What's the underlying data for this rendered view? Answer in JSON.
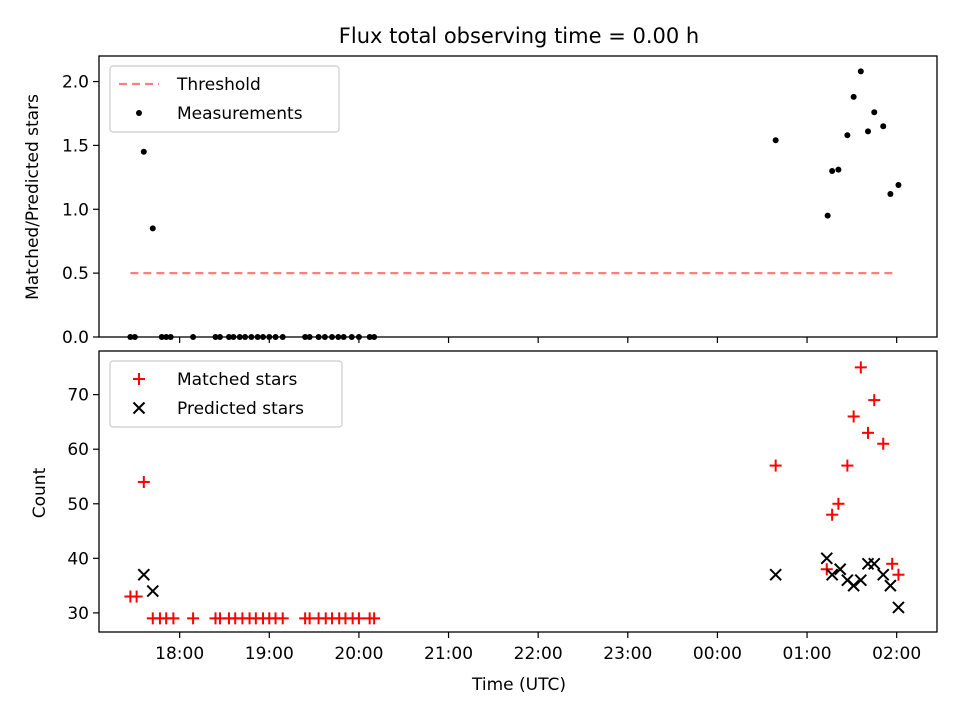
{
  "chart_data": [
    {
      "type": "scatter",
      "title": "Flux total observing time = 0.00 h",
      "xlabel": "",
      "ylabel": "Matched/Predicted stars",
      "xlim": [
        17.1,
        26.45
      ],
      "ylim": [
        0,
        2.2
      ],
      "yticks": [
        0.0,
        0.5,
        1.0,
        1.5,
        2.0
      ],
      "ytick_labels": [
        "0.0",
        "0.5",
        "1.0",
        "1.5",
        "2.0"
      ],
      "legend_position": "top-left",
      "legend": [
        "Threshold",
        "Measurements"
      ],
      "threshold": {
        "name": "Threshold",
        "x_start": 17.45,
        "x_end": 25.98,
        "y": 0.5,
        "color": "#ff7f7f"
      },
      "series": [
        {
          "name": "Measurements",
          "color": "#000000",
          "points": [
            [
              17.45,
              0
            ],
            [
              17.5,
              0
            ],
            [
              17.6,
              1.45
            ],
            [
              17.7,
              0.85
            ],
            [
              17.8,
              0
            ],
            [
              17.85,
              0
            ],
            [
              17.9,
              0
            ],
            [
              18.15,
              0
            ],
            [
              18.4,
              0
            ],
            [
              18.45,
              0
            ],
            [
              18.55,
              0
            ],
            [
              18.6,
              0
            ],
            [
              18.67,
              0
            ],
            [
              18.73,
              0
            ],
            [
              18.8,
              0
            ],
            [
              18.87,
              0
            ],
            [
              18.93,
              0
            ],
            [
              19.0,
              0
            ],
            [
              19.07,
              0
            ],
            [
              19.15,
              0
            ],
            [
              19.4,
              0
            ],
            [
              19.45,
              0
            ],
            [
              19.55,
              0
            ],
            [
              19.62,
              0
            ],
            [
              19.7,
              0
            ],
            [
              19.77,
              0
            ],
            [
              19.83,
              0
            ],
            [
              19.92,
              0
            ],
            [
              20.0,
              0
            ],
            [
              20.12,
              0
            ],
            [
              20.17,
              0
            ],
            [
              24.65,
              1.54
            ],
            [
              25.23,
              0.95
            ],
            [
              25.28,
              1.3
            ],
            [
              25.35,
              1.31
            ],
            [
              25.45,
              1.58
            ],
            [
              25.52,
              1.88
            ],
            [
              25.6,
              2.08
            ],
            [
              25.68,
              1.61
            ],
            [
              25.75,
              1.76
            ],
            [
              25.85,
              1.65
            ],
            [
              25.93,
              1.12
            ],
            [
              26.02,
              1.19
            ]
          ]
        }
      ]
    },
    {
      "type": "scatter",
      "title": "",
      "xlabel": "Time (UTC)",
      "ylabel": "Count",
      "xlim": [
        17.1,
        26.45
      ],
      "ylim": [
        26.5,
        78
      ],
      "yticks": [
        30,
        40,
        50,
        60,
        70
      ],
      "ytick_labels": [
        "30",
        "40",
        "50",
        "60",
        "70"
      ],
      "xticks": [
        18,
        19,
        20,
        21,
        22,
        23,
        24,
        25,
        26
      ],
      "xtick_labels": [
        "18:00",
        "19:00",
        "20:00",
        "21:00",
        "22:00",
        "23:00",
        "00:00",
        "01:00",
        "02:00"
      ],
      "legend_position": "top-left",
      "legend": [
        "Matched stars",
        "Predicted stars"
      ],
      "series": [
        {
          "name": "Matched stars",
          "marker": "plus",
          "color": "#ff0000",
          "points": [
            [
              17.45,
              33
            ],
            [
              17.52,
              33
            ],
            [
              17.6,
              54
            ],
            [
              17.7,
              29
            ],
            [
              17.78,
              29
            ],
            [
              17.85,
              29
            ],
            [
              17.93,
              29
            ],
            [
              18.15,
              29
            ],
            [
              18.4,
              29
            ],
            [
              18.45,
              29
            ],
            [
              18.55,
              29
            ],
            [
              18.62,
              29
            ],
            [
              18.7,
              29
            ],
            [
              18.78,
              29
            ],
            [
              18.85,
              29
            ],
            [
              18.93,
              29
            ],
            [
              19.0,
              29
            ],
            [
              19.07,
              29
            ],
            [
              19.15,
              29
            ],
            [
              19.4,
              29
            ],
            [
              19.45,
              29
            ],
            [
              19.55,
              29
            ],
            [
              19.63,
              29
            ],
            [
              19.7,
              29
            ],
            [
              19.78,
              29
            ],
            [
              19.85,
              29
            ],
            [
              19.93,
              29
            ],
            [
              20.0,
              29
            ],
            [
              20.12,
              29
            ],
            [
              20.17,
              29
            ],
            [
              24.65,
              57
            ],
            [
              25.22,
              38
            ],
            [
              25.28,
              48
            ],
            [
              25.35,
              50
            ],
            [
              25.45,
              57
            ],
            [
              25.52,
              66
            ],
            [
              25.6,
              75
            ],
            [
              25.68,
              63
            ],
            [
              25.75,
              69
            ],
            [
              25.85,
              61
            ],
            [
              25.95,
              39
            ],
            [
              26.02,
              37
            ]
          ]
        },
        {
          "name": "Predicted stars",
          "marker": "x",
          "color": "#000000",
          "points": [
            [
              17.6,
              37
            ],
            [
              17.7,
              34
            ],
            [
              24.65,
              37
            ],
            [
              25.22,
              40
            ],
            [
              25.28,
              37
            ],
            [
              25.37,
              38
            ],
            [
              25.45,
              36
            ],
            [
              25.52,
              35
            ],
            [
              25.6,
              36
            ],
            [
              25.68,
              39
            ],
            [
              25.75,
              39
            ],
            [
              25.85,
              37
            ],
            [
              25.93,
              35
            ],
            [
              26.02,
              31
            ]
          ]
        }
      ]
    }
  ]
}
